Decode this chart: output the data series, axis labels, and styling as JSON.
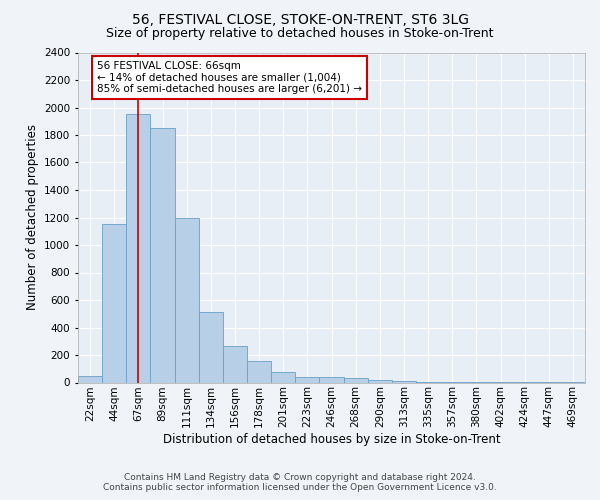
{
  "title": "56, FESTIVAL CLOSE, STOKE-ON-TRENT, ST6 3LG",
  "subtitle": "Size of property relative to detached houses in Stoke-on-Trent",
  "xlabel": "Distribution of detached houses by size in Stoke-on-Trent",
  "ylabel": "Number of detached properties",
  "categories": [
    "22sqm",
    "44sqm",
    "67sqm",
    "89sqm",
    "111sqm",
    "134sqm",
    "156sqm",
    "178sqm",
    "201sqm",
    "223sqm",
    "246sqm",
    "268sqm",
    "290sqm",
    "313sqm",
    "335sqm",
    "357sqm",
    "380sqm",
    "402sqm",
    "424sqm",
    "447sqm",
    "469sqm"
  ],
  "values": [
    50,
    1150,
    1950,
    1850,
    1200,
    510,
    265,
    155,
    75,
    40,
    40,
    30,
    15,
    10,
    5,
    5,
    5,
    5,
    3,
    3,
    2
  ],
  "bar_color": "#b8cfe8",
  "bar_edge_color": "#6a9fc8",
  "annotation_text_line1": "56 FESTIVAL CLOSE: 66sqm",
  "annotation_text_line2": "← 14% of detached houses are smaller (1,004)",
  "annotation_text_line3": "85% of semi-detached houses are larger (6,201) →",
  "annotation_box_facecolor": "#ffffff",
  "annotation_box_edgecolor": "#cc0000",
  "vline_color": "#cc0000",
  "vline_x": 2.0,
  "ylim": [
    0,
    2400
  ],
  "yticks": [
    0,
    200,
    400,
    600,
    800,
    1000,
    1200,
    1400,
    1600,
    1800,
    2000,
    2200,
    2400
  ],
  "footer_line1": "Contains HM Land Registry data © Crown copyright and database right 2024.",
  "footer_line2": "Contains public sector information licensed under the Open Government Licence v3.0.",
  "background_color": "#f0f4f8",
  "plot_background_color": "#e8eef5",
  "grid_color": "#ffffff",
  "title_fontsize": 10,
  "subtitle_fontsize": 9,
  "axis_label_fontsize": 8.5,
  "tick_fontsize": 7.5,
  "footer_fontsize": 6.5
}
